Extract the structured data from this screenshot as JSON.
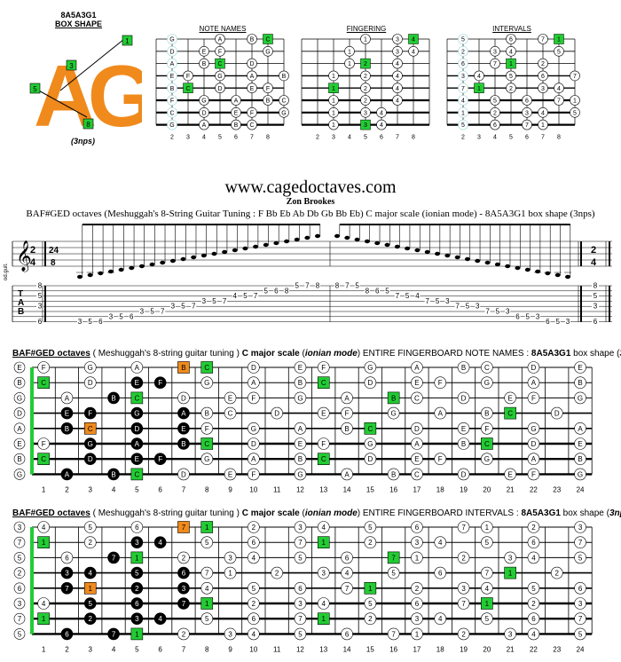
{
  "shape": {
    "code": "8A5A3G1",
    "box_label": "BOX SHAPE",
    "big_letters": "AG",
    "nps": "(3nps)",
    "callouts": [
      "1",
      "3",
      "5",
      "8"
    ]
  },
  "mini": {
    "note_names_title": "NOTE NAMES",
    "fingering_title": "FINGERING",
    "intervals_title": "INTERVALS",
    "fret_numbers": [
      "2",
      "3",
      "4",
      "5",
      "6",
      "7",
      "8"
    ],
    "note_names_rows": [
      [
        "",
        "G",
        "",
        "",
        "A",
        "",
        "B",
        "C",
        ""
      ],
      [
        "",
        "D",
        "",
        "E",
        "F",
        "",
        "",
        "G",
        ""
      ],
      [
        "",
        "A",
        "",
        "B",
        "C",
        "",
        "D",
        "",
        ""
      ],
      [
        "",
        "E",
        "F",
        "",
        "G",
        "",
        "A",
        "",
        "B"
      ],
      [
        "",
        "B",
        "C",
        "",
        "D",
        "",
        "E",
        "F",
        ""
      ],
      [
        "",
        "F",
        "",
        "G",
        "",
        "A",
        "",
        "B",
        "C"
      ],
      [
        "",
        "C",
        "",
        "D",
        "",
        "E",
        "F",
        "",
        "G"
      ],
      [
        "",
        "G",
        "",
        "A",
        "",
        "B",
        "C",
        "",
        ""
      ]
    ],
    "fingering_rows": [
      [
        "",
        "",
        "",
        "",
        "1",
        "",
        "3",
        "4",
        ""
      ],
      [
        "",
        "",
        "",
        "1",
        "",
        "",
        "3",
        "4",
        ""
      ],
      [
        "",
        "",
        "",
        "1",
        "2",
        "",
        "4",
        "",
        ""
      ],
      [
        "",
        "",
        "1",
        "",
        "2",
        "",
        "4",
        "",
        ""
      ],
      [
        "",
        "",
        "1",
        "",
        "2",
        "",
        "4",
        "",
        ""
      ],
      [
        "",
        "",
        "1",
        "",
        "2",
        "",
        "4",
        "",
        ""
      ],
      [
        "",
        "",
        "1",
        "",
        "3",
        "4",
        "",
        "",
        ""
      ],
      [
        "",
        "",
        "1",
        "",
        "3",
        "4",
        "",
        "",
        ""
      ]
    ],
    "intervals_rows": [
      [
        "",
        "5",
        "",
        "",
        "6",
        "",
        "7",
        "1",
        ""
      ],
      [
        "",
        "2",
        "",
        "3",
        "4",
        "",
        "",
        "5",
        ""
      ],
      [
        "",
        "6",
        "",
        "7",
        "1",
        "",
        "2",
        "",
        ""
      ],
      [
        "",
        "3",
        "4",
        "",
        "5",
        "",
        "6",
        "",
        "7"
      ],
      [
        "",
        "7",
        "1",
        "",
        "2",
        "",
        "3",
        "4",
        ""
      ],
      [
        "",
        "4",
        "",
        "5",
        "",
        "6",
        "",
        "7",
        "1"
      ],
      [
        "",
        "1",
        "",
        "2",
        "",
        "3",
        "4",
        "",
        "5"
      ],
      [
        "",
        "5",
        "",
        "6",
        "",
        "7",
        "1",
        "",
        ""
      ]
    ]
  },
  "header": {
    "site": "www.cagedoctaves.com",
    "author": "Zon Brookes",
    "description": "BAF#GED octaves (Meshuggah's 8-String Guitar Tuning : F Bb Eb Ab Db Gb Bb Eb) C major scale (ionian mode) - 8A5A3G1 box shape (3nps)"
  },
  "notation": {
    "side_label": "od.guit.",
    "time_sig_start": "2/4",
    "time_sig_mid": "24/8",
    "time_sig_end": "2/4",
    "tab_letters": [
      "T",
      "A",
      "B"
    ],
    "tab_left_nums": [
      "8",
      "5",
      "3",
      "6"
    ],
    "tab_right_nums": [
      "8",
      "5",
      "3",
      "6"
    ],
    "tab_ascending": [
      "3",
      "5",
      "6",
      "3",
      "5",
      "6",
      "3",
      "5",
      "7",
      "3",
      "5",
      "7",
      "3",
      "5",
      "7",
      "4",
      "5",
      "7",
      "5",
      "6",
      "8",
      "5",
      "7",
      "8"
    ],
    "tab_descending": [
      "8",
      "7",
      "5",
      "8",
      "6",
      "5",
      "7",
      "5",
      "4",
      "7",
      "5",
      "3",
      "7",
      "5",
      "3",
      "7",
      "5",
      "3",
      "6",
      "5",
      "3",
      "6",
      "5",
      "3"
    ]
  },
  "board_notes": {
    "title_parts": [
      "BAF#GED octaves",
      " ( Meshuggah's 8-string guitar tuning ) ",
      "C major scale",
      " (",
      "ionian mode",
      ") ENTIRE FINGERBOARD NOTE NAMES : ",
      "8A5A3G1",
      " box shape (",
      "3nps",
      ")"
    ],
    "open_strings": [
      "E",
      "B",
      "G",
      "D",
      "A",
      "E",
      "B",
      "G"
    ],
    "fret_numbers": [
      "1",
      "2",
      "3",
      "4",
      "5",
      "6",
      "7",
      "8",
      "9",
      "10",
      "11",
      "12",
      "13",
      "14",
      "15",
      "16",
      "17",
      "18",
      "19",
      "20",
      "21",
      "22",
      "23",
      "24"
    ],
    "rows": [
      [
        "F",
        "",
        "G",
        "",
        "A",
        "",
        "B",
        "C",
        "",
        "D",
        "",
        "E",
        "F",
        "",
        "G",
        "",
        "A",
        "",
        "B",
        "C",
        "",
        "D",
        "",
        "E"
      ],
      [
        "C",
        "",
        "D",
        "",
        "E",
        "F",
        "",
        "G",
        "",
        "A",
        "",
        "B",
        "C",
        "",
        "D",
        "",
        "E",
        "F",
        "",
        "G",
        "",
        "A",
        "",
        "B"
      ],
      [
        "",
        "A",
        "",
        "B",
        "C",
        "",
        "D",
        "",
        "E",
        "F",
        "",
        "G",
        "",
        "A",
        "",
        "B",
        "C",
        "",
        "D",
        "",
        "E",
        "F",
        "",
        "G"
      ],
      [
        "",
        "E",
        "F",
        "",
        "G",
        "",
        "A",
        "B",
        "C",
        "",
        "D",
        "",
        "E",
        "F",
        "",
        "G",
        "",
        "A",
        "",
        "B",
        "C",
        "",
        "D",
        ""
      ],
      [
        "",
        "B",
        "C",
        "",
        "D",
        "",
        "E",
        "F",
        "",
        "G",
        "",
        "A",
        "",
        "B",
        "C",
        "",
        "D",
        "",
        "E",
        "F",
        "",
        "G",
        "",
        "A"
      ],
      [
        "F",
        "",
        "G",
        "",
        "A",
        "",
        "B",
        "C",
        "",
        "D",
        "",
        "E",
        "F",
        "",
        "G",
        "",
        "A",
        "",
        "B",
        "C",
        "",
        "D",
        "",
        "E"
      ],
      [
        "C",
        "",
        "D",
        "",
        "E",
        "F",
        "",
        "G",
        "",
        "A",
        "",
        "B",
        "C",
        "",
        "D",
        "",
        "E",
        "F",
        "",
        "G",
        "",
        "A",
        "",
        "B"
      ],
      [
        "",
        "A",
        "",
        "B",
        "C",
        "",
        "D",
        "",
        "E",
        "F",
        "",
        "G",
        "",
        "A",
        "",
        "B",
        "C",
        "",
        "D",
        "",
        "E",
        "F",
        "",
        "G"
      ]
    ]
  },
  "board_intervals": {
    "title_parts": [
      "BAF#GED octaves",
      " ( Meshuggah's 8-string guitar tuning ) ",
      "C major scale",
      " (",
      "ionian mode",
      ") ENTIRE FINGERBOARD INTERVALS : ",
      "8A5A3G1",
      " box shape (",
      "3nps",
      ")"
    ],
    "open_strings": [
      "3",
      "7",
      "5",
      "2",
      "6",
      "3",
      "7",
      "5"
    ],
    "fret_numbers": [
      "1",
      "2",
      "3",
      "4",
      "5",
      "6",
      "7",
      "8",
      "9",
      "10",
      "11",
      "12",
      "13",
      "14",
      "15",
      "16",
      "17",
      "18",
      "19",
      "20",
      "21",
      "22",
      "23",
      "24"
    ],
    "rows": [
      [
        "4",
        "",
        "5",
        "",
        "6",
        "",
        "7",
        "1",
        "",
        "2",
        "",
        "3",
        "4",
        "",
        "5",
        "",
        "6",
        "",
        "7",
        "1",
        "",
        "2",
        "",
        "3"
      ],
      [
        "1",
        "",
        "2",
        "",
        "3",
        "4",
        "",
        "5",
        "",
        "6",
        "",
        "7",
        "1",
        "",
        "2",
        "",
        "3",
        "4",
        "",
        "5",
        "",
        "6",
        "",
        "7"
      ],
      [
        "",
        "6",
        "",
        "7",
        "1",
        "",
        "2",
        "",
        "3",
        "4",
        "",
        "5",
        "",
        "6",
        "",
        "7",
        "1",
        "",
        "2",
        "",
        "3",
        "4",
        "",
        "5"
      ],
      [
        "",
        "3",
        "4",
        "",
        "5",
        "",
        "6",
        "7",
        "1",
        "",
        "2",
        "",
        "3",
        "4",
        "",
        "5",
        "",
        "6",
        "",
        "7",
        "1",
        "",
        "2",
        ""
      ],
      [
        "",
        "7",
        "1",
        "",
        "2",
        "",
        "3",
        "4",
        "",
        "5",
        "",
        "6",
        "",
        "7",
        "1",
        "",
        "2",
        "",
        "3",
        "4",
        "",
        "5",
        "",
        "6"
      ],
      [
        "4",
        "",
        "5",
        "",
        "6",
        "",
        "7",
        "1",
        "",
        "2",
        "",
        "3",
        "4",
        "",
        "5",
        "",
        "6",
        "",
        "7",
        "1",
        "",
        "2",
        "",
        "3"
      ],
      [
        "1",
        "",
        "2",
        "",
        "3",
        "4",
        "",
        "5",
        "",
        "6",
        "",
        "7",
        "1",
        "",
        "2",
        "",
        "3",
        "4",
        "",
        "5",
        "",
        "6",
        "",
        "7"
      ],
      [
        "",
        "6",
        "",
        "7",
        "1",
        "",
        "2",
        "",
        "3",
        "4",
        "",
        "5",
        "",
        "6",
        "",
        "7",
        "1",
        "",
        "2",
        "",
        "3",
        "4",
        "",
        "5"
      ]
    ]
  },
  "colors": {
    "root_green": "#22cc33",
    "shape_orange": "#f08a1c",
    "box_black": "#000000",
    "ghost_cyan": "#9fd8d8"
  }
}
